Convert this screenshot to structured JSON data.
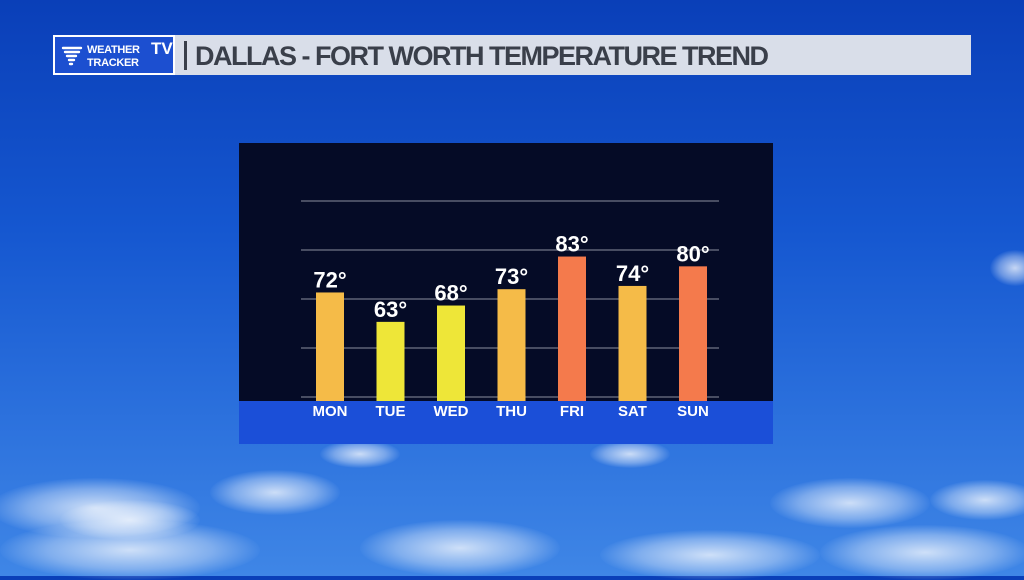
{
  "header": {
    "logo_line1": "WEATHER",
    "logo_line2": "TRACKER",
    "logo_tv": "TV",
    "title": "DALLAS - FORT WORTH TEMPERATURE TREND"
  },
  "colors": {
    "warm": "#f5bb48",
    "mild": "#eee638",
    "hot": "#f47a4c",
    "strip": "#1b4fd8",
    "panel": "#050b26"
  },
  "chart_data": {
    "type": "bar",
    "title": "DALLAS - FORT WORTH TEMPERATURE TREND",
    "categories": [
      "MON",
      "TUE",
      "WED",
      "THU",
      "FRI",
      "SAT",
      "SUN"
    ],
    "values": [
      72,
      63,
      68,
      73,
      83,
      74,
      80
    ],
    "value_labels": [
      "72°",
      "63°",
      "68°",
      "73°",
      "83°",
      "74°",
      "80°"
    ],
    "bar_colors": [
      "#f5bb48",
      "#eee638",
      "#eee638",
      "#f5bb48",
      "#f47a4c",
      "#f5bb48",
      "#f47a4c"
    ],
    "ylim": [
      40,
      100
    ],
    "grid": true,
    "legend": "none",
    "xlabel": "",
    "ylabel": ""
  }
}
